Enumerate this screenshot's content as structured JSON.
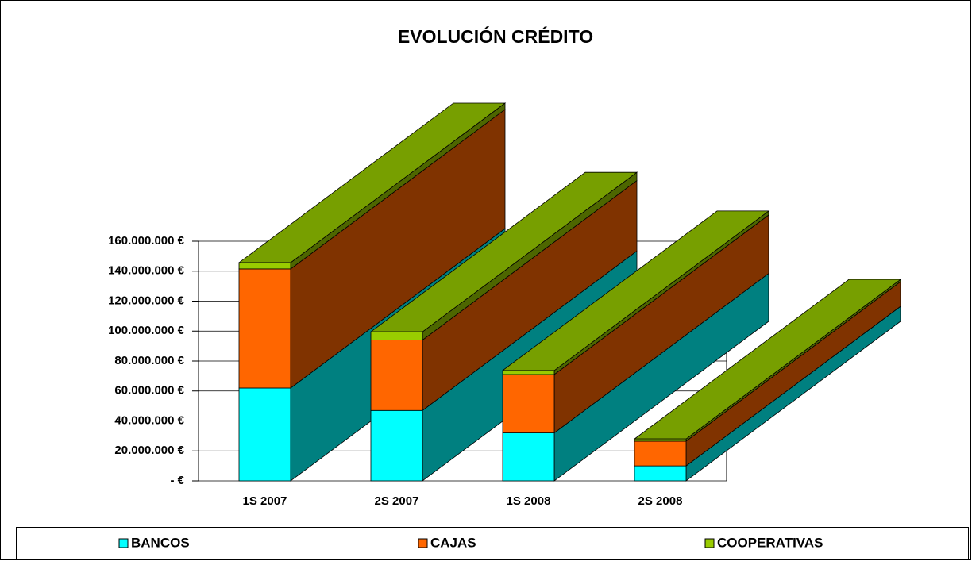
{
  "chart_data": {
    "type": "bar3d_stacked",
    "title": "EVOLUCIÓN CRÉDITO",
    "categories": [
      "1S 2007",
      "2S 2007",
      "1S 2008",
      "2S 2008"
    ],
    "series": [
      {
        "name": "BANCOS",
        "color": "#00ffff",
        "values": [
          62000000,
          47000000,
          32000000,
          10000000
        ]
      },
      {
        "name": "CAJAS",
        "color": "#ff6600",
        "values": [
          79500000,
          47000000,
          39000000,
          16500000
        ]
      },
      {
        "name": "COOPERATIVAS",
        "color": "#99cc00",
        "values": [
          4200000,
          5500000,
          2700000,
          1500000
        ]
      }
    ],
    "ylim": [
      0,
      160000000
    ],
    "yticks": [
      {
        "value": 0,
        "label": "-    €"
      },
      {
        "value": 20000000,
        "label": "20.000.000 €"
      },
      {
        "value": 40000000,
        "label": "40.000.000 €"
      },
      {
        "value": 60000000,
        "label": "60.000.000 €"
      },
      {
        "value": 80000000,
        "label": "80.000.000 €"
      },
      {
        "value": 100000000,
        "label": "100.000.000 €"
      },
      {
        "value": 120000000,
        "label": "120.000.000 €"
      },
      {
        "value": 140000000,
        "label": "140.000.000 €"
      },
      {
        "value": 160000000,
        "label": "160.000.000 €"
      }
    ],
    "grid": true,
    "legend": "bottom"
  }
}
